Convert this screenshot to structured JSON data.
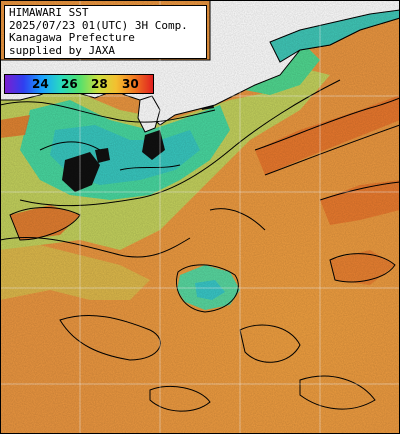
{
  "info_box": {
    "line1": "HIMAWARI SST",
    "line2": "2025/07/23 01(UTC) 3H Comp.",
    "line3": "Kanagawa Prefecture",
    "line4": "supplied by JAXA"
  },
  "legend": {
    "labels": [
      "24",
      "26",
      "28",
      "30"
    ],
    "gradient_colors": [
      "#7a1fd0",
      "#2f3ff0",
      "#1aa0ff",
      "#28d8c0",
      "#4ee070",
      "#c8e040",
      "#f3c030",
      "#f07820",
      "#e02020"
    ]
  },
  "colors": {
    "land": "#ffffff",
    "cloud_missing": "#101010",
    "contour": "#000000",
    "sst_cool": "#38d8a8",
    "sst_mid": "#a8d860",
    "sst_warm": "#f0a040",
    "sst_hot": "#e87020"
  }
}
